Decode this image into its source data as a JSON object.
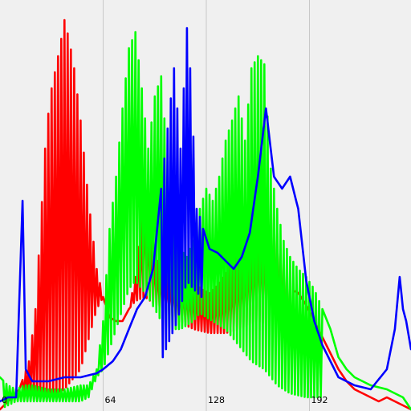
{
  "chart_data": {
    "type": "line",
    "xlim": [
      0,
      255
    ],
    "ylim": [
      0,
      1
    ],
    "grid": "vertical",
    "legend": "none",
    "title": "",
    "xlabel": "",
    "ylabel": "",
    "xticks": [
      {
        "value": 0,
        "label": "0"
      },
      {
        "value": 64,
        "label": "64"
      },
      {
        "value": 128,
        "label": "128"
      },
      {
        "value": 192,
        "label": "192"
      }
    ],
    "colors": {
      "background": "#f0f0f0",
      "grid": "#c8c8c8",
      "red": "#ff0000",
      "green": "#00ff00",
      "blue": "#0000ff"
    },
    "series": [
      {
        "color": "#ff0000",
        "envelope": [
          [
            0,
            0.0
          ],
          [
            5,
            0.02
          ],
          [
            12,
            0.05
          ],
          [
            18,
            0.12
          ],
          [
            22,
            0.25
          ],
          [
            25,
            0.45
          ],
          [
            28,
            0.65
          ],
          [
            31,
            0.78
          ],
          [
            34,
            0.84
          ],
          [
            37,
            0.9
          ],
          [
            40,
            0.97
          ],
          [
            43,
            0.92
          ],
          [
            46,
            0.85
          ],
          [
            50,
            0.72
          ],
          [
            55,
            0.52
          ],
          [
            60,
            0.35
          ],
          [
            64,
            0.28
          ],
          [
            68,
            0.23
          ],
          [
            72,
            0.22
          ],
          [
            76,
            0.22
          ],
          [
            80,
            0.25
          ],
          [
            84,
            0.33
          ],
          [
            88,
            0.48
          ],
          [
            90,
            0.6
          ],
          [
            92,
            0.52
          ],
          [
            95,
            0.42
          ],
          [
            98,
            0.37
          ],
          [
            102,
            0.35
          ],
          [
            106,
            0.34
          ],
          [
            110,
            0.33
          ],
          [
            115,
            0.33
          ],
          [
            120,
            0.32
          ],
          [
            125,
            0.3
          ],
          [
            130,
            0.29
          ],
          [
            135,
            0.31
          ],
          [
            140,
            0.34
          ],
          [
            145,
            0.38
          ],
          [
            150,
            0.42
          ],
          [
            155,
            0.46
          ],
          [
            160,
            0.49
          ],
          [
            165,
            0.51
          ],
          [
            170,
            0.48
          ],
          [
            175,
            0.38
          ],
          [
            180,
            0.3
          ],
          [
            185,
            0.29
          ],
          [
            190,
            0.26
          ],
          [
            195,
            0.22
          ],
          [
            200,
            0.18
          ],
          [
            205,
            0.14
          ],
          [
            210,
            0.1
          ],
          [
            215,
            0.07
          ],
          [
            220,
            0.05
          ],
          [
            225,
            0.04
          ],
          [
            230,
            0.03
          ],
          [
            235,
            0.02
          ],
          [
            240,
            0.03
          ],
          [
            245,
            0.02
          ],
          [
            250,
            0.01
          ],
          [
            255,
            0.0
          ]
        ],
        "min_level": [
          [
            0,
            0.0
          ],
          [
            10,
            0.03
          ],
          [
            20,
            0.04
          ],
          [
            30,
            0.03
          ],
          [
            40,
            0.05
          ],
          [
            50,
            0.1
          ],
          [
            60,
            0.25
          ],
          [
            64,
            0.28
          ],
          [
            68,
            0.23
          ],
          [
            72,
            0.22
          ],
          [
            76,
            0.22
          ],
          [
            80,
            0.25
          ],
          [
            84,
            0.27
          ],
          [
            90,
            0.28
          ],
          [
            100,
            0.25
          ],
          [
            110,
            0.22
          ],
          [
            120,
            0.2
          ],
          [
            130,
            0.19
          ],
          [
            140,
            0.19
          ],
          [
            150,
            0.2
          ],
          [
            160,
            0.22
          ],
          [
            170,
            0.2
          ],
          [
            175,
            0.18
          ],
          [
            180,
            0.12
          ],
          [
            190,
            0.1
          ],
          [
            200,
            0.07
          ],
          [
            210,
            0.05
          ],
          [
            220,
            0.03
          ],
          [
            230,
            0.02
          ],
          [
            240,
            0.01
          ],
          [
            255,
            0.0
          ]
        ],
        "comb_from": 14,
        "comb_to": 182
      },
      {
        "color": "#00ff00",
        "envelope": [
          [
            0,
            0.08
          ],
          [
            5,
            0.06
          ],
          [
            10,
            0.05
          ],
          [
            15,
            0.06
          ],
          [
            20,
            0.06
          ],
          [
            30,
            0.05
          ],
          [
            40,
            0.05
          ],
          [
            50,
            0.06
          ],
          [
            55,
            0.06
          ],
          [
            60,
            0.1
          ],
          [
            64,
            0.22
          ],
          [
            68,
            0.45
          ],
          [
            72,
            0.58
          ],
          [
            76,
            0.75
          ],
          [
            80,
            0.9
          ],
          [
            84,
            0.94
          ],
          [
            88,
            0.8
          ],
          [
            92,
            0.65
          ],
          [
            96,
            0.78
          ],
          [
            100,
            0.83
          ],
          [
            104,
            0.62
          ],
          [
            108,
            0.45
          ],
          [
            112,
            0.4
          ],
          [
            116,
            0.38
          ],
          [
            120,
            0.42
          ],
          [
            124,
            0.5
          ],
          [
            128,
            0.55
          ],
          [
            132,
            0.52
          ],
          [
            136,
            0.58
          ],
          [
            140,
            0.67
          ],
          [
            144,
            0.72
          ],
          [
            148,
            0.78
          ],
          [
            152,
            0.67
          ],
          [
            156,
            0.85
          ],
          [
            160,
            0.88
          ],
          [
            164,
            0.86
          ],
          [
            168,
            0.6
          ],
          [
            172,
            0.5
          ],
          [
            176,
            0.42
          ],
          [
            180,
            0.38
          ],
          [
            185,
            0.35
          ],
          [
            190,
            0.33
          ],
          [
            195,
            0.3
          ],
          [
            200,
            0.25
          ],
          [
            205,
            0.2
          ],
          [
            210,
            0.13
          ],
          [
            215,
            0.1
          ],
          [
            220,
            0.08
          ],
          [
            230,
            0.06
          ],
          [
            240,
            0.05
          ],
          [
            250,
            0.03
          ],
          [
            255,
            0.0
          ]
        ],
        "min_level": [
          [
            0,
            0.0
          ],
          [
            10,
            0.02
          ],
          [
            20,
            0.02
          ],
          [
            30,
            0.02
          ],
          [
            40,
            0.02
          ],
          [
            50,
            0.02
          ],
          [
            55,
            0.03
          ],
          [
            60,
            0.08
          ],
          [
            64,
            0.1
          ],
          [
            68,
            0.15
          ],
          [
            72,
            0.2
          ],
          [
            76,
            0.25
          ],
          [
            80,
            0.3
          ],
          [
            84,
            0.32
          ],
          [
            88,
            0.3
          ],
          [
            92,
            0.28
          ],
          [
            96,
            0.25
          ],
          [
            100,
            0.22
          ],
          [
            104,
            0.2
          ],
          [
            108,
            0.2
          ],
          [
            112,
            0.2
          ],
          [
            116,
            0.21
          ],
          [
            120,
            0.22
          ],
          [
            124,
            0.24
          ],
          [
            128,
            0.23
          ],
          [
            132,
            0.22
          ],
          [
            136,
            0.21
          ],
          [
            140,
            0.2
          ],
          [
            144,
            0.18
          ],
          [
            148,
            0.16
          ],
          [
            152,
            0.14
          ],
          [
            156,
            0.12
          ],
          [
            160,
            0.11
          ],
          [
            164,
            0.1
          ],
          [
            168,
            0.08
          ],
          [
            172,
            0.06
          ],
          [
            180,
            0.04
          ],
          [
            190,
            0.03
          ],
          [
            200,
            0.03
          ],
          [
            210,
            0.04
          ],
          [
            220,
            0.03
          ],
          [
            230,
            0.02
          ],
          [
            240,
            0.01
          ],
          [
            255,
            0.0
          ]
        ],
        "comb_from": 2,
        "comb_to": 200
      },
      {
        "color": "#0000ff",
        "envelope": [
          [
            0,
            0.02
          ],
          [
            5,
            0.03
          ],
          [
            10,
            0.03
          ],
          [
            14,
            0.52
          ],
          [
            16,
            0.1
          ],
          [
            20,
            0.07
          ],
          [
            30,
            0.07
          ],
          [
            40,
            0.08
          ],
          [
            50,
            0.08
          ],
          [
            60,
            0.09
          ],
          [
            64,
            0.1
          ],
          [
            70,
            0.12
          ],
          [
            75,
            0.15
          ],
          [
            80,
            0.2
          ],
          [
            85,
            0.25
          ],
          [
            90,
            0.28
          ],
          [
            95,
            0.35
          ],
          [
            100,
            0.55
          ],
          [
            104,
            0.7
          ],
          [
            108,
            0.85
          ],
          [
            112,
            0.65
          ],
          [
            116,
            0.95
          ],
          [
            118,
            0.85
          ],
          [
            120,
            0.68
          ],
          [
            122,
            0.5
          ],
          [
            124,
            0.48
          ],
          [
            126,
            0.45
          ],
          [
            130,
            0.4
          ],
          [
            135,
            0.39
          ],
          [
            140,
            0.37
          ],
          [
            145,
            0.35
          ],
          [
            150,
            0.38
          ],
          [
            155,
            0.44
          ],
          [
            160,
            0.58
          ],
          [
            165,
            0.75
          ],
          [
            170,
            0.58
          ],
          [
            175,
            0.55
          ],
          [
            180,
            0.58
          ],
          [
            185,
            0.5
          ],
          [
            190,
            0.32
          ],
          [
            195,
            0.22
          ],
          [
            200,
            0.16
          ],
          [
            205,
            0.12
          ],
          [
            210,
            0.08
          ],
          [
            220,
            0.06
          ],
          [
            230,
            0.05
          ],
          [
            240,
            0.1
          ],
          [
            245,
            0.2
          ],
          [
            248,
            0.33
          ],
          [
            250,
            0.25
          ],
          [
            252,
            0.22
          ],
          [
            255,
            0.15
          ]
        ],
        "min_level": [
          [
            0,
            0.0
          ],
          [
            10,
            0.02
          ],
          [
            20,
            0.03
          ],
          [
            30,
            0.03
          ],
          [
            40,
            0.03
          ],
          [
            50,
            0.04
          ],
          [
            60,
            0.06
          ],
          [
            70,
            0.06
          ],
          [
            80,
            0.06
          ],
          [
            90,
            0.08
          ],
          [
            100,
            0.12
          ],
          [
            110,
            0.22
          ],
          [
            116,
            0.32
          ],
          [
            120,
            0.3
          ],
          [
            130,
            0.26
          ],
          [
            140,
            0.24
          ],
          [
            150,
            0.25
          ],
          [
            160,
            0.3
          ],
          [
            170,
            0.35
          ],
          [
            180,
            0.4
          ],
          [
            185,
            0.35
          ],
          [
            190,
            0.22
          ],
          [
            200,
            0.12
          ],
          [
            210,
            0.06
          ],
          [
            220,
            0.04
          ],
          [
            230,
            0.04
          ],
          [
            240,
            0.06
          ],
          [
            250,
            0.08
          ],
          [
            255,
            0.06
          ]
        ],
        "comb_from": 100,
        "comb_to": 125
      }
    ]
  }
}
